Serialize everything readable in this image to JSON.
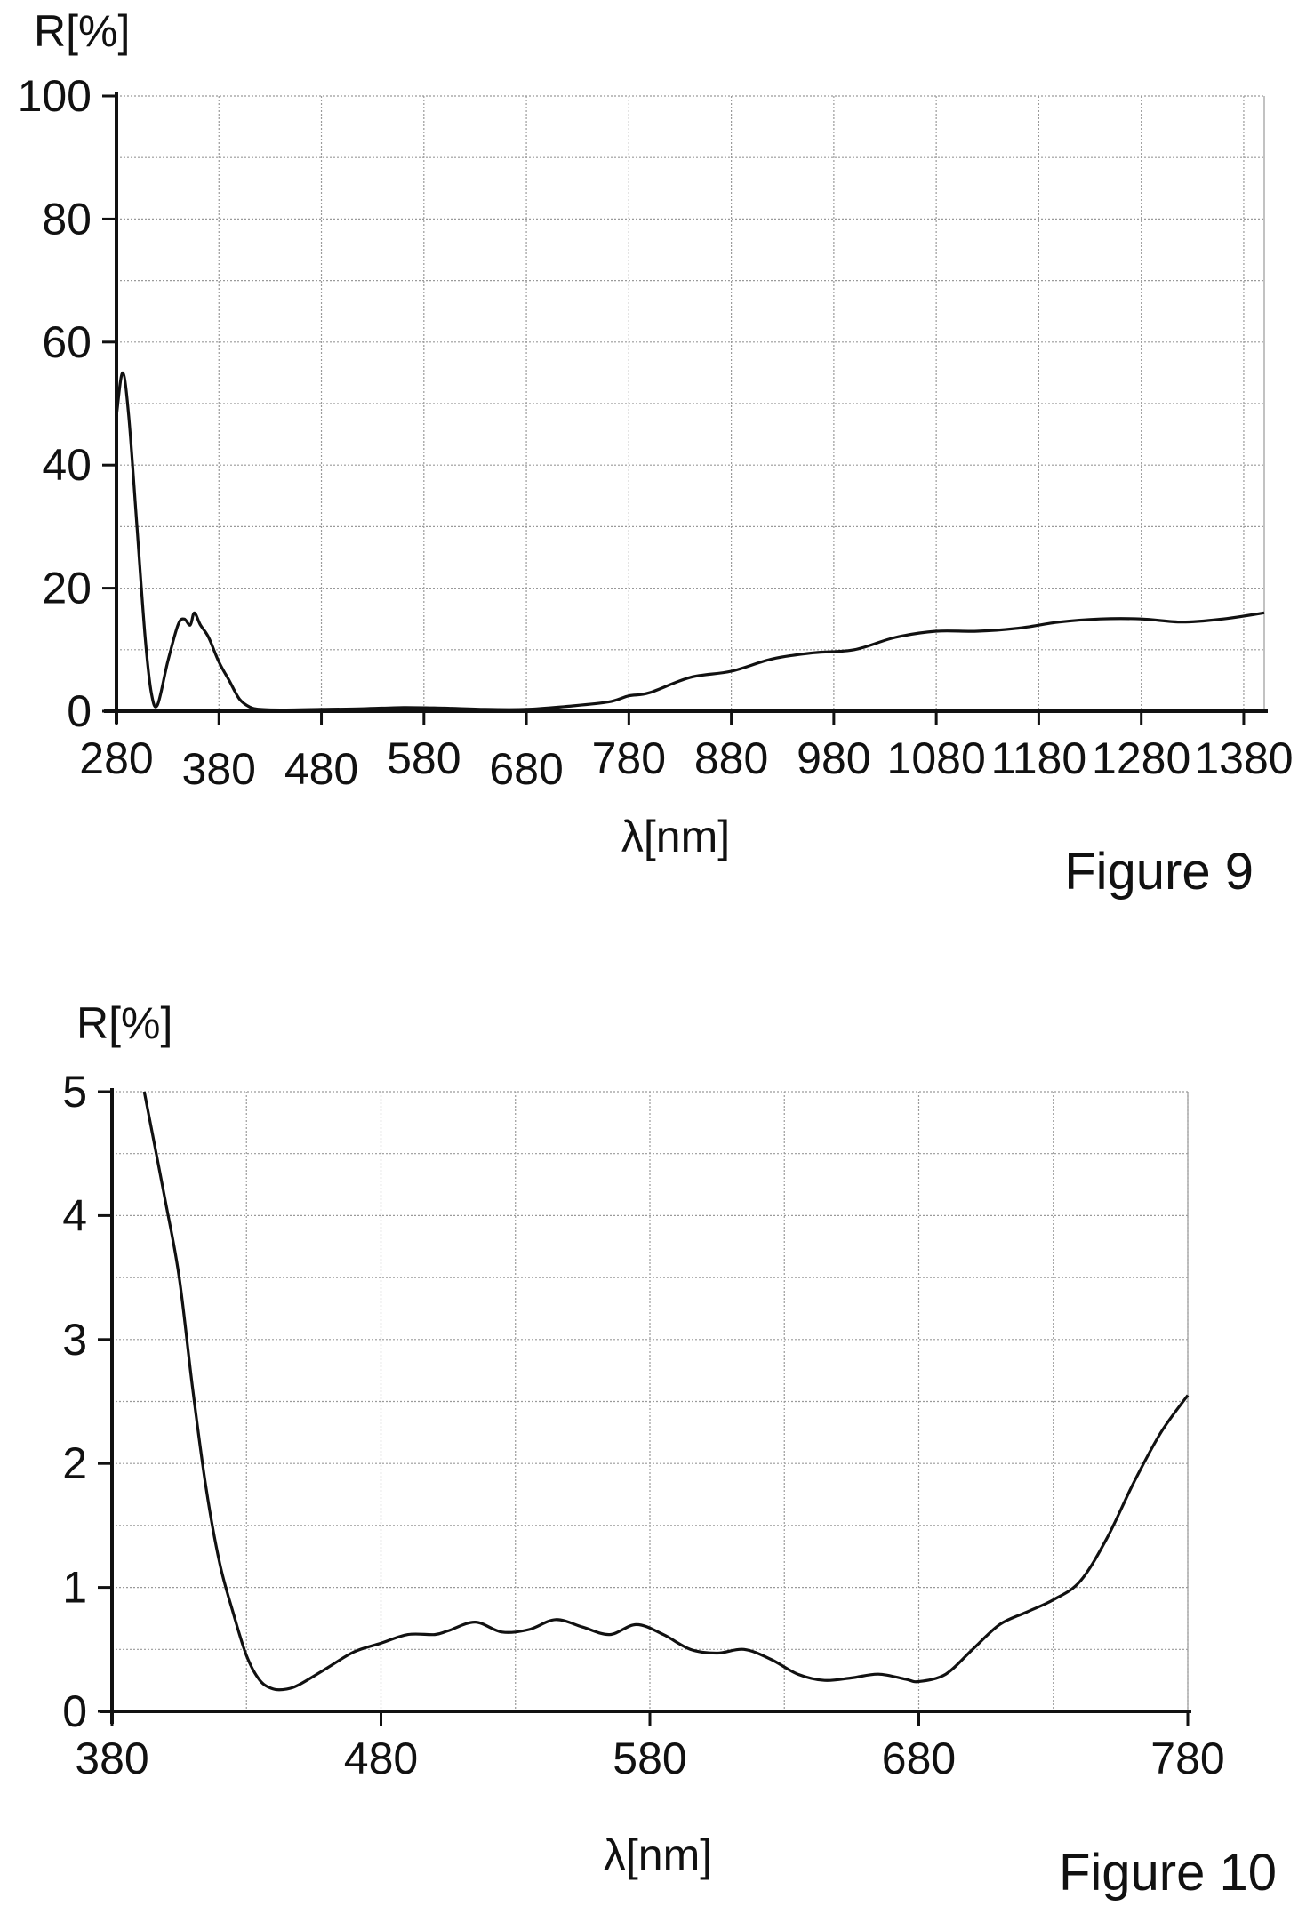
{
  "chart_data": [
    {
      "type": "line",
      "figure_label": "Figure 9",
      "xlabel": "λ[nm]",
      "ylabel": "R[%]",
      "xlim": [
        280,
        1400
      ],
      "ylim": [
        0,
        100
      ],
      "x_ticks": [
        280,
        380,
        480,
        580,
        680,
        780,
        880,
        980,
        1080,
        1180,
        1280,
        1380
      ],
      "y_ticks": [
        0,
        20,
        40,
        60,
        80,
        100
      ],
      "grid": true,
      "series": [
        {
          "points": [
            [
              280,
              48
            ],
            [
              286,
              55
            ],
            [
              292,
              48
            ],
            [
              300,
              30
            ],
            [
              308,
              12
            ],
            [
              314,
              3
            ],
            [
              320,
              1
            ],
            [
              330,
              8
            ],
            [
              340,
              14
            ],
            [
              346,
              15
            ],
            [
              352,
              14
            ],
            [
              356,
              16
            ],
            [
              362,
              14
            ],
            [
              370,
              12
            ],
            [
              380,
              8
            ],
            [
              390,
              5
            ],
            [
              400,
              2
            ],
            [
              410,
              0.7
            ],
            [
              420,
              0.3
            ],
            [
              440,
              0.2
            ],
            [
              480,
              0.3
            ],
            [
              520,
              0.4
            ],
            [
              560,
              0.6
            ],
            [
              600,
              0.5
            ],
            [
              640,
              0.3
            ],
            [
              680,
              0.3
            ],
            [
              720,
              0.8
            ],
            [
              760,
              1.5
            ],
            [
              780,
              2.5
            ],
            [
              800,
              3
            ],
            [
              840,
              5.5
            ],
            [
              880,
              6.5
            ],
            [
              920,
              8.5
            ],
            [
              960,
              9.5
            ],
            [
              1000,
              10
            ],
            [
              1040,
              12
            ],
            [
              1080,
              13
            ],
            [
              1120,
              13
            ],
            [
              1160,
              13.5
            ],
            [
              1200,
              14.5
            ],
            [
              1240,
              15
            ],
            [
              1280,
              15
            ],
            [
              1320,
              14.5
            ],
            [
              1360,
              15
            ],
            [
              1400,
              16
            ]
          ]
        }
      ]
    },
    {
      "type": "line",
      "figure_label": "Figure 10",
      "xlabel": "λ[nm]",
      "ylabel": "R[%]",
      "xlim": [
        380,
        780
      ],
      "ylim": [
        0,
        5
      ],
      "x_ticks": [
        380,
        480,
        580,
        680,
        780
      ],
      "y_ticks": [
        0,
        1,
        2,
        3,
        4,
        5
      ],
      "grid": true,
      "series": [
        {
          "points": [
            [
              392,
              5
            ],
            [
              400,
              4.1
            ],
            [
              405,
              3.5
            ],
            [
              410,
              2.6
            ],
            [
              415,
              1.8
            ],
            [
              420,
              1.2
            ],
            [
              425,
              0.8
            ],
            [
              430,
              0.45
            ],
            [
              435,
              0.25
            ],
            [
              440,
              0.18
            ],
            [
              445,
              0.18
            ],
            [
              450,
              0.22
            ],
            [
              460,
              0.35
            ],
            [
              470,
              0.48
            ],
            [
              480,
              0.55
            ],
            [
              490,
              0.62
            ],
            [
              500,
              0.62
            ],
            [
              505,
              0.65
            ],
            [
              515,
              0.72
            ],
            [
              525,
              0.64
            ],
            [
              535,
              0.66
            ],
            [
              545,
              0.74
            ],
            [
              555,
              0.68
            ],
            [
              565,
              0.62
            ],
            [
              575,
              0.7
            ],
            [
              585,
              0.62
            ],
            [
              595,
              0.5
            ],
            [
              605,
              0.47
            ],
            [
              615,
              0.5
            ],
            [
              625,
              0.42
            ],
            [
              635,
              0.3
            ],
            [
              645,
              0.25
            ],
            [
              655,
              0.27
            ],
            [
              665,
              0.3
            ],
            [
              675,
              0.26
            ],
            [
              680,
              0.24
            ],
            [
              690,
              0.3
            ],
            [
              700,
              0.5
            ],
            [
              710,
              0.7
            ],
            [
              720,
              0.8
            ],
            [
              730,
              0.9
            ],
            [
              740,
              1.05
            ],
            [
              750,
              1.4
            ],
            [
              760,
              1.85
            ],
            [
              770,
              2.25
            ],
            [
              780,
              2.55
            ]
          ]
        }
      ]
    }
  ]
}
